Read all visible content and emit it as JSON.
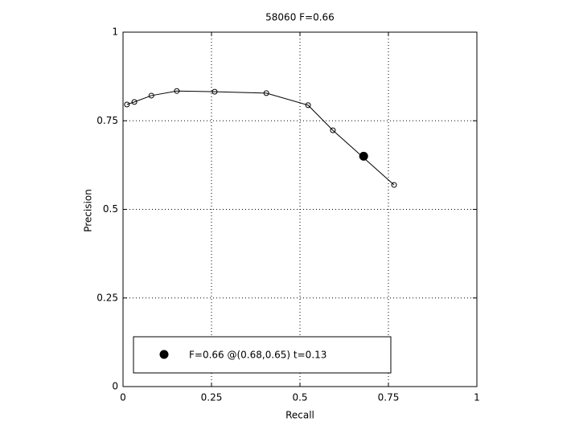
{
  "chart_data": {
    "type": "line",
    "title": "58060 F=0.66",
    "x_label": "Recall",
    "y_label": "Precision",
    "x": [
      0.011,
      0.032,
      0.08,
      0.152,
      0.259,
      0.405,
      0.523,
      0.593,
      0.766
    ],
    "series": [
      {
        "color": "#000000",
        "values": [
          0.796,
          0.803,
          0.821,
          0.834,
          0.832,
          0.828,
          0.794,
          0.723,
          0.569
        ]
      }
    ],
    "highlight": {
      "x": 0.68,
      "y": 0.65,
      "label": "F=0.66 @(0.68,0.65) t=0.13"
    },
    "xlim": [
      0,
      1
    ],
    "ylim": [
      0,
      1
    ],
    "xticks": [
      0,
      0.25,
      0.5,
      0.75,
      1
    ],
    "yticks": [
      0,
      0.25,
      0.5,
      0.75,
      1
    ],
    "grid": true
  }
}
